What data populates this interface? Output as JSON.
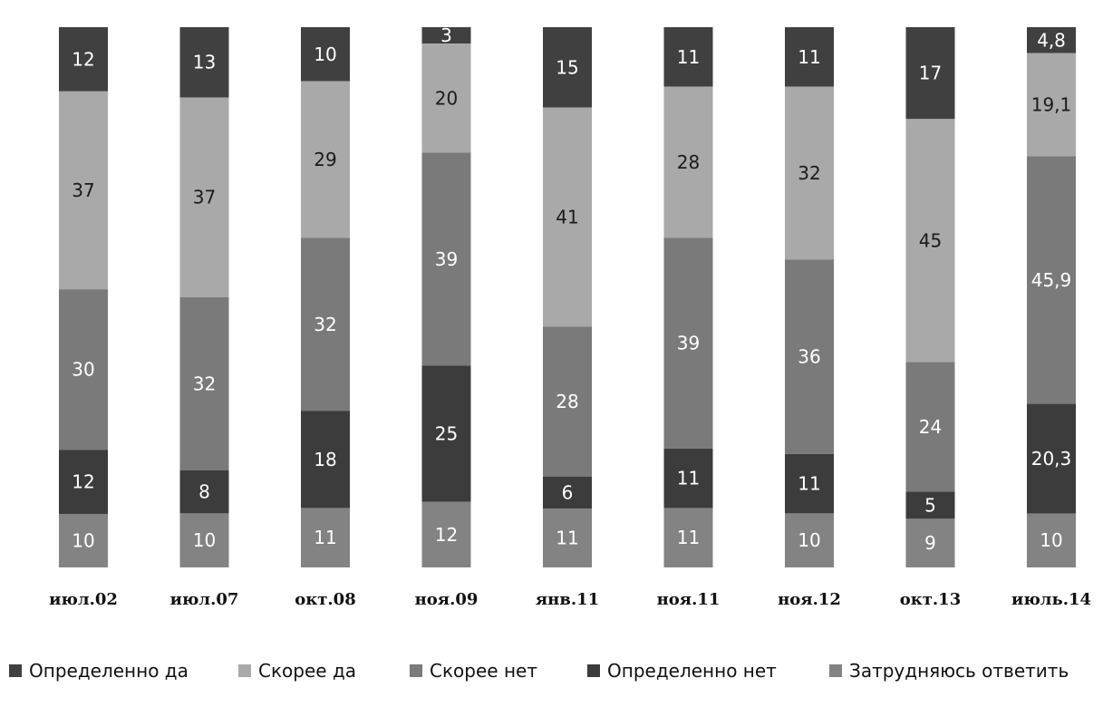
{
  "chart_data": {
    "type": "bar",
    "stacked": true,
    "normalized": true,
    "categories": [
      "июл.02",
      "июл.07",
      "окт.08",
      "ноя.09",
      "янв.11",
      "ноя.11",
      "ноя.12",
      "окт.13",
      "июль.14"
    ],
    "series": [
      {
        "name": "Определенно да",
        "color": "#404040",
        "values": [
          12,
          13,
          10,
          3,
          15,
          11,
          11,
          17,
          4.8
        ],
        "labels": [
          "12",
          "13",
          "10",
          "3",
          "15",
          "11",
          "11",
          "17",
          "4,8"
        ]
      },
      {
        "name": "Скорее да",
        "color": "#a9a9a9",
        "values": [
          37,
          37,
          29,
          20,
          41,
          28,
          32,
          45,
          19.1
        ],
        "labels": [
          "37",
          "37",
          "29",
          "20",
          "41",
          "28",
          "32",
          "45",
          "19,1"
        ]
      },
      {
        "name": "Скорее нет",
        "color": "#7a7a7a",
        "values": [
          30,
          32,
          32,
          39,
          28,
          39,
          36,
          24,
          45.9
        ],
        "labels": [
          "30",
          "32",
          "32",
          "39",
          "28",
          "39",
          "36",
          "24",
          "45,9"
        ]
      },
      {
        "name": "Определенно нет",
        "color": "#3c3c3c",
        "values": [
          12,
          8,
          18,
          25,
          6,
          11,
          11,
          5,
          20.3
        ],
        "labels": [
          "12",
          "8",
          "18",
          "25",
          "6",
          "11",
          "11",
          "5",
          "20,3"
        ]
      },
      {
        "name": "Затрудняюсь ответить",
        "color": "#838383",
        "values": [
          10,
          10,
          11,
          12,
          11,
          11,
          10,
          9,
          10
        ],
        "labels": [
          "10",
          "10",
          "11",
          "12",
          "11",
          "11",
          "10",
          "9",
          "10"
        ]
      }
    ],
    "legend_position": "bottom",
    "grid": false
  }
}
